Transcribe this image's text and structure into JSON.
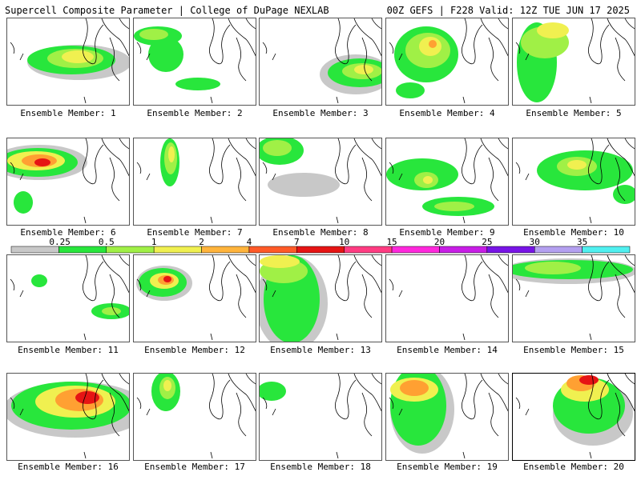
{
  "header": {
    "left": "Supercell Composite Parameter | College of DuPage NEXLAB",
    "right": "00Z GEFS | F228 Valid: 12Z TUE JUN 17 2025"
  },
  "legend": {
    "labels": [
      "0.25",
      "0.5",
      "1",
      "2",
      "4",
      "7",
      "10",
      "15",
      "20",
      "25",
      "30",
      "35"
    ],
    "colors": [
      "#c8c8c8",
      "#28e63c",
      "#a0f046",
      "#f0f050",
      "#ffb43c",
      "#ff5a28",
      "#e61414",
      "#ff3c82",
      "#ff28dc",
      "#c81ee6",
      "#7814e6",
      "#b4a0f0",
      "#50f0f0"
    ]
  },
  "colors": {
    "light_gray": "#c8c8c8",
    "green": "#28e63c",
    "light_green": "#a0f046",
    "yellow": "#f0f050",
    "orange": "#ffa032",
    "red": "#e61414"
  },
  "panels": [
    {
      "label": "Ensemble Member: 1"
    },
    {
      "label": "Ensemble Member: 2"
    },
    {
      "label": "Ensemble Member: 3"
    },
    {
      "label": "Ensemble Member: 4"
    },
    {
      "label": "Ensemble Member: 5"
    },
    {
      "label": "Ensemble Member: 6"
    },
    {
      "label": "Ensemble Member: 7"
    },
    {
      "label": "Ensemble Member: 8"
    },
    {
      "label": "Ensemble Member: 9"
    },
    {
      "label": "Ensemble Member: 10"
    },
    {
      "label": "Ensemble Member: 11"
    },
    {
      "label": "Ensemble Member: 12"
    },
    {
      "label": "Ensemble Member: 13"
    },
    {
      "label": "Ensemble Member: 14"
    },
    {
      "label": "Ensemble Member: 15"
    },
    {
      "label": "Ensemble Member: 16"
    },
    {
      "label": "Ensemble Member: 17"
    },
    {
      "label": "Ensemble Member: 18"
    },
    {
      "label": "Ensemble Member: 19"
    },
    {
      "label": "Ensemble Member: 20"
    }
  ]
}
